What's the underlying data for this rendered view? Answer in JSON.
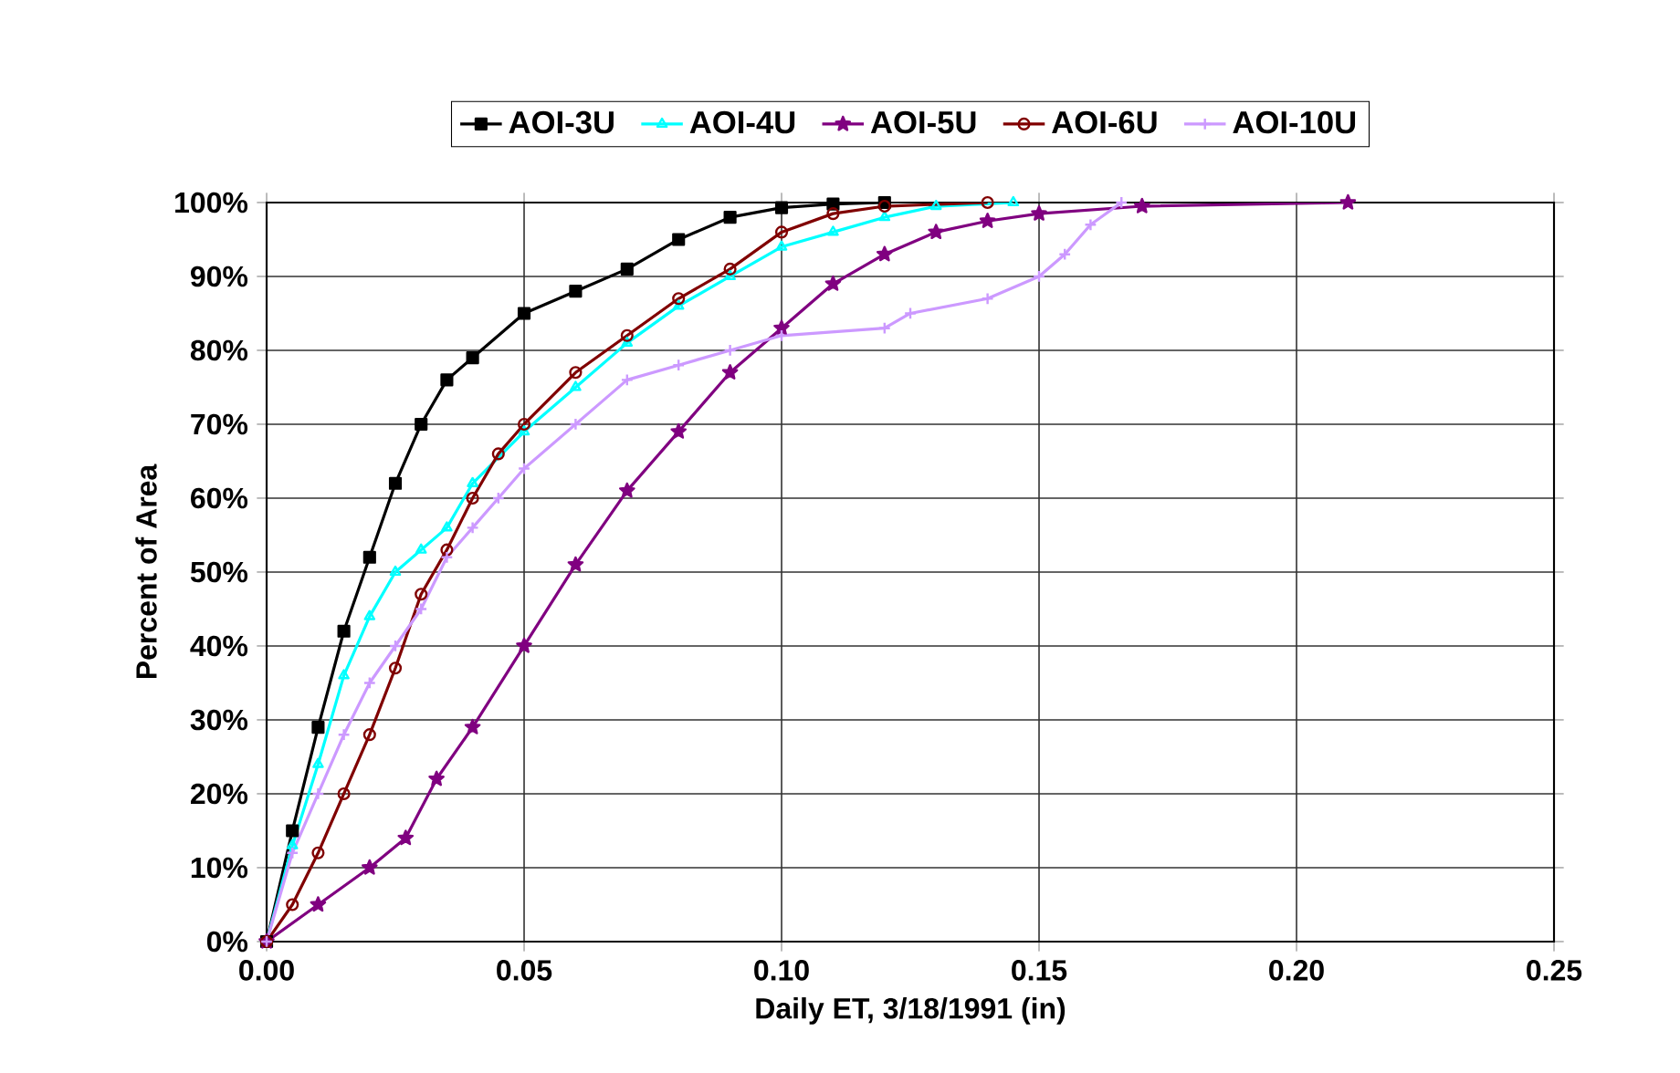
{
  "chart_data": {
    "type": "line",
    "xlabel": "Daily ET, 3/18/1991 (in)",
    "ylabel": "Percent of Area",
    "xlim": [
      0,
      0.25
    ],
    "xticks": [
      {
        "value": 0,
        "label": "0.00"
      },
      {
        "value": 0.05,
        "label": "0.05"
      },
      {
        "value": 0.1,
        "label": "0.10"
      },
      {
        "value": 0.15,
        "label": "0.15"
      },
      {
        "value": 0.2,
        "label": "0.20"
      },
      {
        "value": 0.25,
        "label": "0.25"
      }
    ],
    "ylim": [
      0,
      100
    ],
    "yticks": [
      {
        "value": 0,
        "label": "0%"
      },
      {
        "value": 10,
        "label": "10%"
      },
      {
        "value": 20,
        "label": "20%"
      },
      {
        "value": 30,
        "label": "30%"
      },
      {
        "value": 40,
        "label": "40%"
      },
      {
        "value": 50,
        "label": "50%"
      },
      {
        "value": 60,
        "label": "60%"
      },
      {
        "value": 70,
        "label": "70%"
      },
      {
        "value": 80,
        "label": "80%"
      },
      {
        "value": 90,
        "label": "90%"
      },
      {
        "value": 100,
        "label": "100%"
      }
    ],
    "grid": true,
    "legend": "top",
    "line_style": "solid",
    "series": [
      {
        "name": "AOI-3U",
        "color": "#000000",
        "marker": "square",
        "x": [
          0,
          0.005,
          0.01,
          0.015,
          0.02,
          0.025,
          0.03,
          0.035,
          0.04,
          0.05,
          0.06,
          0.07,
          0.08,
          0.09,
          0.1,
          0.11,
          0.12
        ],
        "values": [
          0,
          15,
          29,
          42,
          52,
          62,
          70,
          76,
          79,
          85,
          88,
          91,
          95,
          98,
          99.3,
          99.8,
          100
        ]
      },
      {
        "name": "AOI-4U",
        "color": "#00ffff",
        "marker": "triangle",
        "x": [
          0,
          0.005,
          0.01,
          0.015,
          0.02,
          0.025,
          0.03,
          0.035,
          0.04,
          0.05,
          0.06,
          0.07,
          0.08,
          0.09,
          0.1,
          0.11,
          0.12,
          0.13,
          0.145
        ],
        "values": [
          0,
          13,
          24,
          36,
          44,
          50,
          53,
          56,
          62,
          69,
          75,
          81,
          86,
          90,
          94,
          96,
          98,
          99.5,
          100
        ]
      },
      {
        "name": "AOI-5U",
        "color": "#800080",
        "marker": "star",
        "x": [
          0,
          0.01,
          0.02,
          0.027,
          0.033,
          0.04,
          0.05,
          0.06,
          0.07,
          0.08,
          0.09,
          0.1,
          0.11,
          0.12,
          0.13,
          0.14,
          0.15,
          0.17,
          0.21
        ],
        "values": [
          0,
          5,
          10,
          14,
          22,
          29,
          40,
          51,
          61,
          69,
          77,
          83,
          89,
          93,
          96,
          97.5,
          98.5,
          99.5,
          100
        ]
      },
      {
        "name": "AOI-6U",
        "color": "#800000",
        "marker": "circle",
        "x": [
          0,
          0.005,
          0.01,
          0.015,
          0.02,
          0.025,
          0.03,
          0.035,
          0.04,
          0.045,
          0.05,
          0.06,
          0.07,
          0.08,
          0.09,
          0.1,
          0.11,
          0.12,
          0.14
        ],
        "values": [
          0,
          5,
          12,
          20,
          28,
          37,
          47,
          53,
          60,
          66,
          70,
          77,
          82,
          87,
          91,
          96,
          98.5,
          99.5,
          100
        ]
      },
      {
        "name": "AOI-10U",
        "color": "#cc99ff",
        "marker": "cross",
        "x": [
          0,
          0.005,
          0.01,
          0.015,
          0.02,
          0.025,
          0.03,
          0.035,
          0.04,
          0.045,
          0.05,
          0.06,
          0.07,
          0.08,
          0.09,
          0.1,
          0.12,
          0.125,
          0.14,
          0.15,
          0.155,
          0.16,
          0.166
        ],
        "values": [
          0,
          12,
          20,
          28,
          35,
          40,
          45,
          52,
          56,
          60,
          64,
          70,
          76,
          78,
          80,
          82,
          83,
          85,
          87,
          90,
          93,
          97,
          100
        ]
      }
    ]
  }
}
